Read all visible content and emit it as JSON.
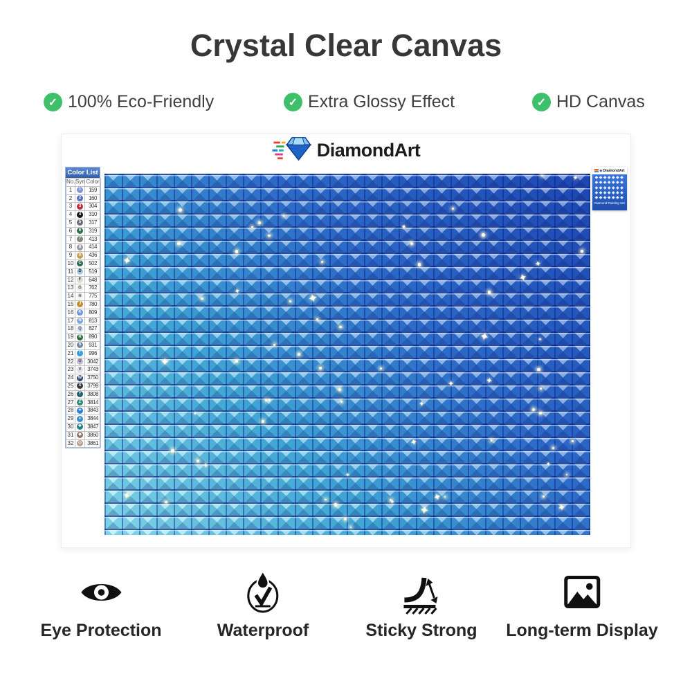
{
  "page": {
    "title": "Crystal Clear Canvas"
  },
  "check_color": "#3ec06a",
  "top_features": [
    {
      "label": "100% Eco-Friendly"
    },
    {
      "label": "Extra Glossy Effect"
    },
    {
      "label": "HD Canvas"
    }
  ],
  "brand": {
    "name": "DiamondArt",
    "diamond_blue": "#1f63c8"
  },
  "color_list": {
    "title": "Color List",
    "columns": [
      "No.",
      "Symbol",
      "Color"
    ],
    "rows": [
      {
        "no": "1",
        "symbol": "1",
        "code": "159",
        "bg": "#7b97d9",
        "fg": "#ffffff"
      },
      {
        "no": "2",
        "symbol": "2",
        "code": "160",
        "bg": "#5570c5",
        "fg": "#ffffff"
      },
      {
        "no": "3",
        "symbol": "3",
        "code": "304",
        "bg": "#c22f45",
        "fg": "#ffffff"
      },
      {
        "no": "4",
        "symbol": "4",
        "code": "310",
        "bg": "#141414",
        "fg": "#ffffff"
      },
      {
        "no": "5",
        "symbol": "5",
        "code": "317",
        "bg": "#6e6e76",
        "fg": "#ffffff"
      },
      {
        "no": "6",
        "symbol": "6",
        "code": "319",
        "bg": "#33714d",
        "fg": "#ffffff"
      },
      {
        "no": "7",
        "symbol": "7",
        "code": "413",
        "bg": "#7d8577",
        "fg": "#ffffff"
      },
      {
        "no": "8",
        "symbol": "8",
        "code": "414",
        "bg": "#9b9ba3",
        "fg": "#ffffff"
      },
      {
        "no": "9",
        "symbol": "A",
        "code": "436",
        "bg": "#c99c52",
        "fg": "#ffffff"
      },
      {
        "no": "10",
        "symbol": "C",
        "code": "502",
        "bg": "#2e6b4f",
        "fg": "#ffffff"
      },
      {
        "no": "11",
        "symbol": "D",
        "code": "519",
        "bg": "#a6cbe8",
        "fg": "#2a2a2a"
      },
      {
        "no": "12",
        "symbol": "F",
        "code": "648",
        "bg": "#dcdcd2",
        "fg": "#4a4a4a"
      },
      {
        "no": "13",
        "symbol": "G",
        "code": "762",
        "bg": "#ececec",
        "fg": "#4a4a4a"
      },
      {
        "no": "14",
        "symbol": "H",
        "code": "775",
        "bg": "#f3f3f3",
        "fg": "#4a4a4a"
      },
      {
        "no": "15",
        "symbol": "J",
        "code": "780",
        "bg": "#c08a2d",
        "fg": "#ffffff"
      },
      {
        "no": "16",
        "symbol": "K",
        "code": "809",
        "bg": "#6f94d8",
        "fg": "#ffffff"
      },
      {
        "no": "17",
        "symbol": "N",
        "code": "813",
        "bg": "#7fa8d9",
        "fg": "#ffffff"
      },
      {
        "no": "18",
        "symbol": "Q",
        "code": "827",
        "bg": "#cfe3f2",
        "fg": "#4a4a4a"
      },
      {
        "no": "19",
        "symbol": "R",
        "code": "890",
        "bg": "#2f6b3f",
        "fg": "#ffffff"
      },
      {
        "no": "20",
        "symbol": "S",
        "code": "931",
        "bg": "#7487a0",
        "fg": "#ffffff"
      },
      {
        "no": "21",
        "symbol": "T",
        "code": "996",
        "bg": "#2f9fe0",
        "fg": "#ffffff"
      },
      {
        "no": "22",
        "symbol": "U",
        "code": "3042",
        "bg": "#c3b8cc",
        "fg": "#4a4a4a"
      },
      {
        "no": "23",
        "symbol": "V",
        "code": "3743",
        "bg": "#e2e0ea",
        "fg": "#4a4a4a"
      },
      {
        "no": "24",
        "symbol": "W",
        "code": "3750",
        "bg": "#2e4a72",
        "fg": "#ffffff"
      },
      {
        "no": "25",
        "symbol": "X",
        "code": "3799",
        "bg": "#3a3a40",
        "fg": "#ffffff"
      },
      {
        "no": "26",
        "symbol": "Y",
        "code": "3808",
        "bg": "#1f5f6e",
        "fg": "#ffffff"
      },
      {
        "no": "27",
        "symbol": "Z",
        "code": "3814",
        "bg": "#2e8a78",
        "fg": "#ffffff"
      },
      {
        "no": "28",
        "symbol": "✦",
        "code": "3843",
        "bg": "#2f7fd6",
        "fg": "#ffffff"
      },
      {
        "no": "29",
        "symbol": "♦",
        "code": "3844",
        "bg": "#3a8fd0",
        "fg": "#ffffff"
      },
      {
        "no": "30",
        "symbol": "❖",
        "code": "3847",
        "bg": "#1f7d85",
        "fg": "#ffffff"
      },
      {
        "no": "31",
        "symbol": "◆",
        "code": "3860",
        "bg": "#8a7265",
        "fg": "#ffffff"
      },
      {
        "no": "32",
        "symbol": "◇",
        "code": "3861",
        "bg": "#b7a393",
        "fg": "#ffffff"
      }
    ]
  },
  "canvas": {
    "gradient": [
      "#1d49b5",
      "#2f72cf",
      "#45b4de",
      "#8feaf2"
    ],
    "grid_line_color": "rgba(10,30,130,0.7)"
  },
  "mini_label": {
    "brand": "DiamondArt",
    "caption": "Diamond Painting Set",
    "bg": "#2b63cc"
  },
  "bottom_features": [
    {
      "icon": "eye-icon",
      "label": "Eye Protection"
    },
    {
      "icon": "waterproof-icon",
      "label": "Waterproof"
    },
    {
      "icon": "sticky-icon",
      "label": "Sticky Strong"
    },
    {
      "icon": "display-icon",
      "label": "Long-term Display"
    }
  ]
}
